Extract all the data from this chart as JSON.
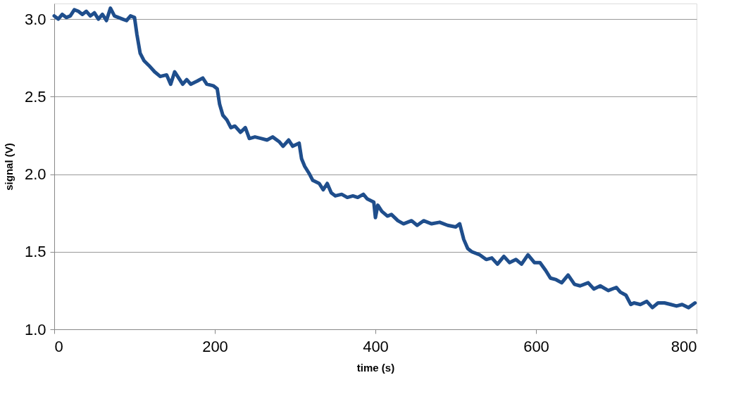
{
  "chart_data": {
    "type": "line",
    "xlabel": "time (s)",
    "ylabel": "signal (V)",
    "xlim": [
      0,
      800
    ],
    "xticks": [
      0,
      200,
      400,
      600,
      800
    ],
    "ylim": [
      1.0,
      3.1
    ],
    "yticks": [
      {
        "value": 1.0,
        "label": "1.0"
      },
      {
        "value": 1.5,
        "label": "1.5"
      },
      {
        "value": 2.0,
        "label": "2.0"
      },
      {
        "value": 2.5,
        "label": "2.5"
      },
      {
        "value": 3.0,
        "label": "3.0"
      }
    ],
    "grid": "y",
    "marker": "none",
    "line_style": "solid",
    "series": [
      {
        "color": "#1f4e8c",
        "x": [
          0,
          5,
          10,
          15,
          20,
          25,
          30,
          35,
          40,
          45,
          50,
          55,
          60,
          65,
          70,
          75,
          80,
          85,
          90,
          95,
          100,
          103,
          107,
          112,
          118,
          125,
          132,
          140,
          145,
          150,
          155,
          160,
          165,
          170,
          178,
          185,
          190,
          198,
          203,
          206,
          210,
          215,
          220,
          225,
          232,
          238,
          243,
          250,
          258,
          265,
          272,
          280,
          285,
          292,
          297,
          305,
          308,
          312,
          318,
          322,
          330,
          335,
          340,
          345,
          350,
          358,
          365,
          372,
          378,
          385,
          390,
          398,
          400,
          403,
          408,
          415,
          420,
          428,
          435,
          445,
          452,
          460,
          470,
          480,
          490,
          500,
          505,
          510,
          515,
          520,
          530,
          538,
          545,
          552,
          560,
          567,
          575,
          582,
          590,
          598,
          605,
          612,
          618,
          625,
          632,
          640,
          648,
          655,
          665,
          672,
          680,
          690,
          700,
          705,
          712,
          718,
          722,
          730,
          738,
          745,
          752,
          760,
          768,
          775,
          782,
          790,
          798
        ],
        "values": [
          3.02,
          3.0,
          3.03,
          3.01,
          3.02,
          3.06,
          3.05,
          3.03,
          3.05,
          3.02,
          3.04,
          3.0,
          3.03,
          2.99,
          3.07,
          3.02,
          3.01,
          3.0,
          2.99,
          3.02,
          3.01,
          2.9,
          2.78,
          2.73,
          2.7,
          2.66,
          2.63,
          2.64,
          2.58,
          2.66,
          2.62,
          2.58,
          2.61,
          2.58,
          2.6,
          2.62,
          2.58,
          2.57,
          2.55,
          2.45,
          2.38,
          2.35,
          2.3,
          2.31,
          2.27,
          2.3,
          2.23,
          2.24,
          2.23,
          2.22,
          2.24,
          2.21,
          2.18,
          2.22,
          2.18,
          2.2,
          2.1,
          2.05,
          2.0,
          1.96,
          1.94,
          1.9,
          1.94,
          1.88,
          1.86,
          1.87,
          1.85,
          1.86,
          1.85,
          1.87,
          1.84,
          1.82,
          1.72,
          1.8,
          1.76,
          1.73,
          1.74,
          1.7,
          1.68,
          1.7,
          1.67,
          1.7,
          1.68,
          1.69,
          1.67,
          1.66,
          1.68,
          1.58,
          1.52,
          1.5,
          1.48,
          1.45,
          1.46,
          1.42,
          1.47,
          1.43,
          1.45,
          1.42,
          1.48,
          1.43,
          1.43,
          1.38,
          1.33,
          1.32,
          1.3,
          1.35,
          1.29,
          1.28,
          1.3,
          1.26,
          1.28,
          1.25,
          1.27,
          1.24,
          1.22,
          1.16,
          1.17,
          1.16,
          1.18,
          1.14,
          1.17,
          1.17,
          1.16,
          1.15,
          1.16,
          1.14,
          1.17
        ]
      }
    ]
  }
}
